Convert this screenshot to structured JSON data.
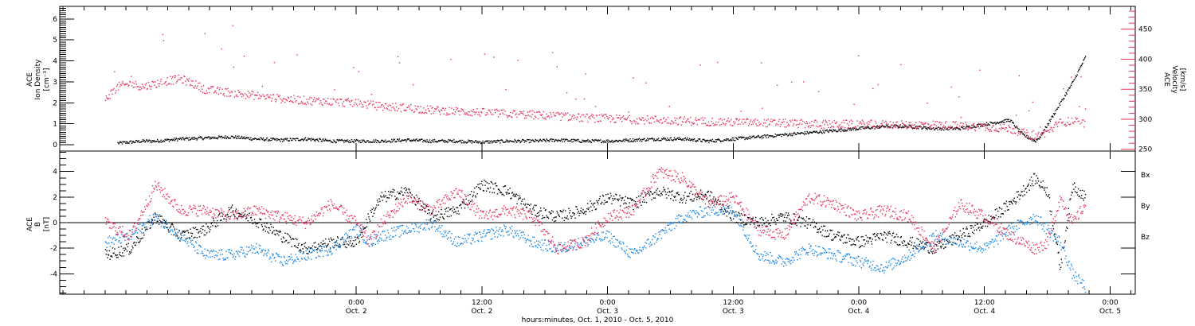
{
  "colors": {
    "black": "#000000",
    "blue": "#1a86e8",
    "pink": "#e8325c"
  },
  "chart_data": [
    {
      "type": "scatter",
      "panel": "top",
      "ylabel_lines": [
        "ACE",
        "Ion Density"
      ],
      "yunit_left": "[cm⁻³]",
      "ylim_left": [
        -0.3,
        6.6
      ],
      "left_ticks": [
        "0",
        "1",
        "2",
        "3",
        "4",
        "5",
        "6"
      ],
      "ylabel_right_lines": [
        "ACE",
        "Velocity"
      ],
      "yunit_right": "[km/s]",
      "ylim_right": [
        247,
        488
      ],
      "right_ticks": [
        "250",
        "300",
        "350",
        "400",
        "450"
      ],
      "series": [
        {
          "color": "#000000",
          "axis": "left",
          "x": [
            0.05,
            0.1,
            0.15,
            0.2,
            0.25,
            0.3,
            0.4,
            0.5,
            0.6,
            0.7,
            0.8,
            0.9,
            1.0,
            1.1,
            1.2,
            1.3,
            1.4,
            1.5,
            1.6,
            1.7,
            1.8,
            1.9,
            2.0,
            2.1,
            2.2,
            2.3,
            2.4,
            2.5,
            2.6,
            2.7,
            2.8,
            2.9,
            3.0,
            3.1,
            3.2,
            3.3,
            3.4,
            3.5,
            3.6,
            3.65,
            3.7,
            3.72,
            3.75,
            3.8,
            3.85,
            3.9
          ],
          "y": [
            0.1,
            0.15,
            0.2,
            0.2,
            0.25,
            0.3,
            0.35,
            0.4,
            0.3,
            0.25,
            0.3,
            0.2,
            0.2,
            0.2,
            0.25,
            0.2,
            0.2,
            0.15,
            0.2,
            0.2,
            0.25,
            0.2,
            0.2,
            0.25,
            0.3,
            0.3,
            0.2,
            0.3,
            0.4,
            0.5,
            0.6,
            0.7,
            0.8,
            0.9,
            0.9,
            0.8,
            0.8,
            1.0,
            1.2,
            0.5,
            0.2,
            0.4,
            1.0,
            2.0,
            3.0,
            4.2
          ]
        },
        {
          "color": "#e8325c",
          "axis": "right",
          "x": [
            0.0,
            0.05,
            0.1,
            0.15,
            0.2,
            0.25,
            0.3,
            0.35,
            0.4,
            0.5,
            0.6,
            0.7,
            0.8,
            0.9,
            1.0,
            1.1,
            1.2,
            1.3,
            1.4,
            1.5,
            1.6,
            1.7,
            1.8,
            1.9,
            2.0,
            2.1,
            2.2,
            2.3,
            2.4,
            2.5,
            2.6,
            2.7,
            2.8,
            2.9,
            3.0,
            3.1,
            3.2,
            3.3,
            3.4,
            3.5,
            3.6,
            3.65,
            3.7,
            3.75,
            3.8,
            3.85,
            3.9
          ],
          "y": [
            335,
            355,
            360,
            355,
            360,
            365,
            368,
            360,
            350,
            345,
            340,
            335,
            332,
            330,
            328,
            322,
            320,
            316,
            314,
            312,
            310,
            308,
            306,
            303,
            302,
            300,
            300,
            298,
            297,
            296,
            295,
            294,
            293,
            292,
            293,
            292,
            291,
            292,
            290,
            288,
            285,
            278,
            272,
            280,
            295,
            298,
            293
          ]
        }
      ]
    },
    {
      "type": "scatter",
      "panel": "bottom",
      "ylabel_lines": [
        "ACE",
        "B"
      ],
      "yunit_left": "[nT]",
      "ylim": [
        -5.6,
        5.6
      ],
      "ticks": [
        "-4",
        "-2",
        "0",
        "2",
        "4"
      ],
      "legend": [
        "Bx",
        "By",
        "Bz"
      ],
      "xlabel": "hours:minutes, Oct.  1, 2010 - Oct.  5, 2010",
      "x_ticks": [
        {
          "time": "0:00",
          "date": "Oct. 2"
        },
        {
          "time": "12:00",
          "date": "Oct. 2"
        },
        {
          "time": "0:00",
          "date": "Oct. 3"
        },
        {
          "time": "12:00",
          "date": "Oct. 3"
        },
        {
          "time": "0:00",
          "date": "Oct. 4"
        },
        {
          "time": "12:00",
          "date": "Oct. 4"
        },
        {
          "time": "0:00",
          "date": "Oct. 5"
        }
      ],
      "series": [
        {
          "name": "Bx",
          "color": "#000000",
          "x": [
            0.0,
            0.1,
            0.2,
            0.3,
            0.4,
            0.5,
            0.6,
            0.7,
            0.8,
            0.9,
            1.0,
            1.05,
            1.1,
            1.2,
            1.3,
            1.4,
            1.5,
            1.6,
            1.7,
            1.8,
            1.9,
            2.0,
            2.1,
            2.2,
            2.3,
            2.4,
            2.5,
            2.6,
            2.7,
            2.8,
            2.9,
            3.0,
            3.1,
            3.2,
            3.3,
            3.4,
            3.5,
            3.6,
            3.7,
            3.75,
            3.8,
            3.85,
            3.9
          ],
          "y": [
            -2.5,
            -2.0,
            0.5,
            -1.0,
            -0.5,
            1.0,
            0.2,
            -1.0,
            -2.0,
            -1.5,
            -1.5,
            0.5,
            2.0,
            2.5,
            0.5,
            1.0,
            3.0,
            2.5,
            1.0,
            0.5,
            1.0,
            2.0,
            1.5,
            2.5,
            2.0,
            2.2,
            0.5,
            0.0,
            0.5,
            0.0,
            -1.0,
            -1.5,
            -1.0,
            -1.5,
            -2.0,
            -1.0,
            0.0,
            1.5,
            3.5,
            2.5,
            -3.5,
            3.0,
            2.0
          ]
        },
        {
          "name": "By",
          "color": "#1a86e8",
          "x": [
            0.0,
            0.1,
            0.2,
            0.3,
            0.4,
            0.5,
            0.6,
            0.7,
            0.8,
            0.9,
            1.0,
            1.05,
            1.1,
            1.2,
            1.3,
            1.4,
            1.5,
            1.6,
            1.7,
            1.8,
            1.9,
            2.0,
            2.1,
            2.2,
            2.3,
            2.4,
            2.5,
            2.6,
            2.7,
            2.8,
            2.9,
            3.0,
            3.1,
            3.2,
            3.3,
            3.4,
            3.5,
            3.6,
            3.7,
            3.75,
            3.8,
            3.85,
            3.9
          ],
          "y": [
            -1.5,
            -1.0,
            0.5,
            -1.0,
            -2.5,
            -2.5,
            -2.0,
            -3.0,
            -2.5,
            -2.0,
            -0.5,
            -1.5,
            -1.0,
            -0.5,
            0.0,
            -1.5,
            -1.0,
            -0.5,
            -1.5,
            -2.0,
            -1.5,
            -1.0,
            -2.5,
            -1.0,
            0.5,
            1.0,
            1.0,
            -2.5,
            -3.0,
            -2.0,
            -2.5,
            -3.0,
            -3.5,
            -2.5,
            -1.0,
            -1.5,
            -2.0,
            -0.5,
            0.5,
            -0.5,
            -1.5,
            -4.0,
            -5.0
          ]
        },
        {
          "name": "Bz",
          "color": "#e8325c",
          "x": [
            0.0,
            0.1,
            0.2,
            0.3,
            0.4,
            0.5,
            0.6,
            0.7,
            0.8,
            0.9,
            1.0,
            1.05,
            1.1,
            1.2,
            1.3,
            1.4,
            1.5,
            1.6,
            1.7,
            1.8,
            1.9,
            2.0,
            2.1,
            2.2,
            2.3,
            2.4,
            2.5,
            2.6,
            2.7,
            2.8,
            2.9,
            3.0,
            3.1,
            3.2,
            3.3,
            3.4,
            3.5,
            3.6,
            3.7,
            3.75,
            3.8,
            3.85,
            3.9
          ],
          "y": [
            0.0,
            -1.0,
            3.0,
            1.0,
            1.0,
            0.5,
            1.0,
            0.5,
            0.0,
            1.5,
            0.0,
            -1.5,
            0.0,
            2.0,
            1.0,
            2.5,
            0.5,
            1.0,
            0.5,
            -2.0,
            -1.5,
            0.5,
            1.0,
            4.0,
            3.5,
            1.5,
            2.0,
            -0.5,
            -1.0,
            2.0,
            1.5,
            0.5,
            1.0,
            0.5,
            -2.0,
            1.5,
            0.5,
            -1.0,
            -2.0,
            -1.5,
            2.0,
            0.0,
            1.5
          ]
        }
      ]
    }
  ]
}
